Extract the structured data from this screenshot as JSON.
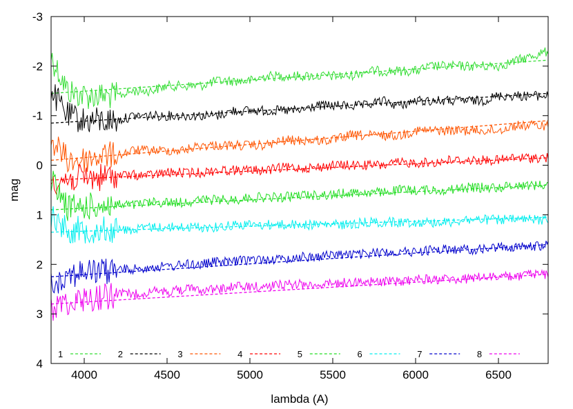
{
  "chart_data": {
    "type": "line",
    "title": "",
    "xlabel": "lambda (A)",
    "ylabel": "mag",
    "xlim": [
      3800,
      6800
    ],
    "ylim": [
      4,
      -3
    ],
    "y_inverted": true,
    "grid": false,
    "xticks": [
      4000,
      4500,
      5000,
      5500,
      6000,
      6500
    ],
    "xtick_labels": [
      "4000",
      "4500",
      "5000",
      "5500",
      "6000",
      "6500"
    ],
    "yticks": [
      -3,
      -2,
      -1,
      0,
      1,
      2,
      3,
      4
    ],
    "ytick_labels": [
      "-3",
      "-2",
      "-1",
      "0",
      "1",
      "2",
      "3",
      "4"
    ],
    "legend_position": "bottom",
    "series": [
      {
        "name": "1",
        "color": "#33dd33",
        "fit_x": [
          3800,
          6800
        ],
        "fit_y": [
          -1.45,
          -2.12
        ],
        "spectrum_x": [
          3800,
          3900,
          4000,
          4100,
          4200,
          4300,
          4400,
          4500,
          4600,
          4700,
          4800,
          4900,
          5000,
          5100,
          5200,
          5300,
          5400,
          5500,
          5600,
          5700,
          5800,
          5900,
          6000,
          6100,
          6200,
          6300,
          6400,
          6500,
          6600,
          6700,
          6800
        ],
        "spectrum_y": [
          -2.2,
          -1.5,
          -1.4,
          -1.4,
          -1.4,
          -1.5,
          -1.5,
          -1.6,
          -1.6,
          -1.6,
          -1.7,
          -1.7,
          -1.7,
          -1.8,
          -1.8,
          -1.8,
          -1.8,
          -1.8,
          -1.8,
          -1.9,
          -1.9,
          -1.9,
          -1.9,
          -2.0,
          -2.0,
          -2.0,
          -2.0,
          -2.0,
          -2.1,
          -2.2,
          -2.3
        ]
      },
      {
        "name": "2",
        "color": "#000000",
        "fit_x": [
          3800,
          6800
        ],
        "fit_y": [
          -0.85,
          -1.45
        ],
        "spectrum_x": [
          3800,
          3900,
          4000,
          4100,
          4200,
          4300,
          4400,
          4500,
          4600,
          4700,
          4800,
          4900,
          5000,
          5100,
          5200,
          5300,
          5400,
          5500,
          5600,
          5700,
          5800,
          5900,
          6000,
          6100,
          6200,
          6300,
          6400,
          6500,
          6600,
          6700,
          6800
        ],
        "spectrum_y": [
          -1.5,
          -1.0,
          -0.9,
          -0.9,
          -0.9,
          -1.0,
          -1.0,
          -1.0,
          -1.0,
          -1.0,
          -1.0,
          -1.1,
          -1.1,
          -1.1,
          -1.1,
          -1.1,
          -1.2,
          -1.2,
          -1.2,
          -1.2,
          -1.3,
          -1.2,
          -1.3,
          -1.3,
          -1.3,
          -1.3,
          -1.3,
          -1.4,
          -1.4,
          -1.4,
          -1.4
        ]
      },
      {
        "name": "3",
        "color": "#ff5500",
        "fit_x": [
          3800,
          6800
        ],
        "fit_y": [
          -0.1,
          -0.9
        ],
        "spectrum_x": [
          3800,
          3900,
          4000,
          4100,
          4200,
          4300,
          4400,
          4500,
          4600,
          4700,
          4800,
          4900,
          5000,
          5100,
          5200,
          5300,
          5400,
          5500,
          5600,
          5700,
          5800,
          5900,
          6000,
          6100,
          6200,
          6300,
          6400,
          6500,
          6600,
          6700,
          6800
        ],
        "spectrum_y": [
          -0.5,
          -0.1,
          -0.1,
          -0.2,
          -0.2,
          -0.3,
          -0.3,
          -0.3,
          -0.3,
          -0.4,
          -0.4,
          -0.4,
          -0.4,
          -0.4,
          -0.5,
          -0.5,
          -0.5,
          -0.5,
          -0.6,
          -0.6,
          -0.6,
          -0.6,
          -0.7,
          -0.7,
          -0.7,
          -0.7,
          -0.7,
          -0.7,
          -0.8,
          -0.8,
          -0.8
        ]
      },
      {
        "name": "4",
        "color": "#ff0000",
        "fit_x": [
          3800,
          6800
        ],
        "fit_y": [
          0.3,
          -0.15
        ],
        "spectrum_x": [
          3800,
          3900,
          4000,
          4100,
          4200,
          4300,
          4400,
          4500,
          4600,
          4700,
          4800,
          4900,
          5000,
          5100,
          5200,
          5300,
          5400,
          5500,
          5600,
          5700,
          5800,
          5900,
          6000,
          6100,
          6200,
          6300,
          6400,
          6500,
          6600,
          6700,
          6800
        ],
        "spectrum_y": [
          0.3,
          0.3,
          0.25,
          0.25,
          0.2,
          0.2,
          0.2,
          0.15,
          0.15,
          0.15,
          0.1,
          0.1,
          0.1,
          0.1,
          0.05,
          0.05,
          0.05,
          0.0,
          0.0,
          0.0,
          0.0,
          -0.05,
          -0.05,
          -0.05,
          -0.1,
          -0.1,
          -0.1,
          -0.1,
          -0.15,
          -0.15,
          -0.15
        ]
      },
      {
        "name": "5",
        "color": "#22dd22",
        "fit_x": [
          3800,
          6800
        ],
        "fit_y": [
          0.9,
          0.4
        ],
        "spectrum_x": [
          3800,
          3900,
          4000,
          4100,
          4200,
          4300,
          4400,
          4500,
          4600,
          4700,
          4800,
          4900,
          5000,
          5100,
          5200,
          5300,
          5400,
          5500,
          5600,
          5700,
          5800,
          5900,
          6000,
          6100,
          6200,
          6300,
          6400,
          6500,
          6600,
          6700,
          6800
        ],
        "spectrum_y": [
          0.3,
          0.85,
          0.85,
          0.8,
          0.8,
          0.8,
          0.75,
          0.75,
          0.75,
          0.7,
          0.7,
          0.7,
          0.65,
          0.65,
          0.65,
          0.6,
          0.6,
          0.6,
          0.55,
          0.55,
          0.55,
          0.5,
          0.5,
          0.5,
          0.5,
          0.45,
          0.45,
          0.45,
          0.4,
          0.4,
          0.4
        ]
      },
      {
        "name": "6",
        "color": "#00eeee",
        "fit_x": [
          3800,
          6800
        ],
        "fit_y": [
          1.35,
          1.05
        ],
        "spectrum_x": [
          3800,
          3900,
          4000,
          4100,
          4200,
          4300,
          4400,
          4500,
          4600,
          4700,
          4800,
          4900,
          5000,
          5100,
          5200,
          5300,
          5400,
          5500,
          5600,
          5700,
          5800,
          5900,
          6000,
          6100,
          6200,
          6300,
          6400,
          6500,
          6600,
          6700,
          6800
        ],
        "spectrum_y": [
          1.0,
          1.3,
          1.3,
          1.3,
          1.3,
          1.3,
          1.25,
          1.25,
          1.25,
          1.25,
          1.25,
          1.2,
          1.2,
          1.2,
          1.2,
          1.2,
          1.2,
          1.2,
          1.2,
          1.15,
          1.15,
          1.15,
          1.15,
          1.15,
          1.15,
          1.1,
          1.1,
          1.1,
          1.1,
          1.1,
          1.1
        ]
      },
      {
        "name": "7",
        "color": "#0000cc",
        "fit_x": [
          3800,
          6800
        ],
        "fit_y": [
          2.25,
          1.6
        ],
        "spectrum_x": [
          3800,
          3900,
          4000,
          4100,
          4200,
          4300,
          4400,
          4500,
          4600,
          4700,
          4800,
          4900,
          5000,
          5100,
          5200,
          5300,
          5400,
          5500,
          5600,
          5700,
          5800,
          5900,
          6000,
          6100,
          6200,
          6300,
          6400,
          6500,
          6600,
          6700,
          6800
        ],
        "spectrum_y": [
          2.4,
          2.2,
          2.15,
          2.15,
          2.1,
          2.1,
          2.05,
          2.05,
          2.0,
          2.0,
          1.95,
          1.95,
          1.9,
          1.9,
          1.9,
          1.85,
          1.85,
          1.8,
          1.8,
          1.8,
          1.75,
          1.75,
          1.75,
          1.7,
          1.7,
          1.7,
          1.7,
          1.65,
          1.65,
          1.65,
          1.6
        ]
      },
      {
        "name": "8",
        "color": "#ee00ee",
        "fit_x": [
          3800,
          6800
        ],
        "fit_y": [
          2.8,
          2.2
        ],
        "spectrum_x": [
          3800,
          3900,
          4000,
          4100,
          4200,
          4300,
          4400,
          4500,
          4600,
          4700,
          4800,
          4900,
          5000,
          5100,
          5200,
          5300,
          5400,
          5500,
          5600,
          5700,
          5800,
          5900,
          6000,
          6100,
          6200,
          6300,
          6400,
          6500,
          6600,
          6700,
          6800
        ],
        "spectrum_y": [
          2.9,
          2.75,
          2.7,
          2.65,
          2.6,
          2.6,
          2.55,
          2.55,
          2.5,
          2.5,
          2.5,
          2.45,
          2.45,
          2.45,
          2.4,
          2.4,
          2.4,
          2.4,
          2.35,
          2.35,
          2.35,
          2.35,
          2.3,
          2.3,
          2.3,
          2.3,
          2.25,
          2.25,
          2.25,
          2.2,
          2.2
        ]
      }
    ]
  }
}
